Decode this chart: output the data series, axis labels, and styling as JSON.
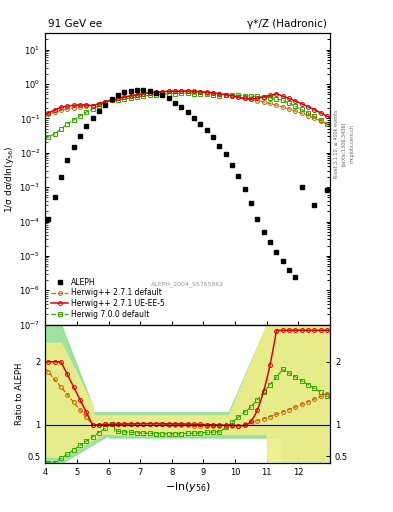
{
  "title_left": "91 GeV ee",
  "title_right": "γ*/Z (Hadronic)",
  "xlabel": "$-\\ln(y_{56})$",
  "ylabel_main": "1/σ dσ/dln(y$_{56}$)",
  "ylabel_ratio": "Ratio to ALEPH",
  "watermark": "ALEPH_2004_S5765862",
  "rivet_label": "Rivet 3.1.10, ≥ 400k events",
  "arxiv_label": "[arXiv:1306.3436]",
  "mcplots_label": "mcplots.cern.ch",
  "xlim": [
    4.0,
    13.0
  ],
  "ylim_main": [
    1e-07,
    30.0
  ],
  "ylim_ratio": [
    0.39,
    2.59
  ],
  "ratio_yticks": [
    0.5,
    1.0,
    2.0
  ],
  "aleph_color": "#000000",
  "herwig271_default_color": "#cc6600",
  "herwig271_ueee5_color": "#dd0000",
  "herwig700_default_color": "#33aa00",
  "band_yellow": "#eeee88",
  "band_green": "#88dd88",
  "legend_entries": [
    "ALEPH",
    "Herwig++ 2.7.1 default",
    "Herwig++ 2.7.1 UE-EE-5",
    "Herwig 7.0.0 default"
  ]
}
